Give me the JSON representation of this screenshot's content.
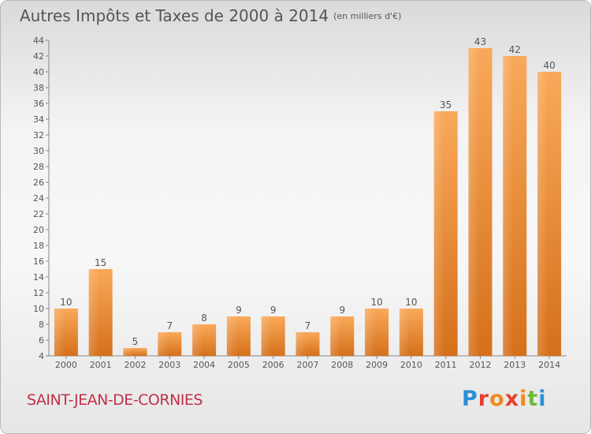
{
  "title": "Autres Impôts et Taxes de 2000 à 2014",
  "unit": "(en milliers d'€)",
  "place": "SAINT-JEAN-DE-CORNIES",
  "logo": {
    "p": "P",
    "r": "r",
    "o": "o",
    "x": "x",
    "i": "i",
    "t": "t",
    "i2": "i"
  },
  "colors": {
    "bar_light": "#f7a552",
    "bar_dark": "#d9731c",
    "text": "#555555",
    "place": "#c0314a"
  },
  "chart_data": {
    "type": "bar",
    "title": "Autres Impôts et Taxes de 2000 à 2014",
    "categories": [
      "2000",
      "2001",
      "2002",
      "2003",
      "2004",
      "2005",
      "2006",
      "2007",
      "2008",
      "2009",
      "2010",
      "2011",
      "2012",
      "2013",
      "2014"
    ],
    "values": [
      10,
      15,
      5,
      7,
      8,
      9,
      9,
      7,
      9,
      10,
      10,
      35,
      43,
      42,
      40
    ],
    "ylim": [
      4,
      44
    ],
    "yticks": [
      4,
      6,
      8,
      10,
      12,
      14,
      16,
      18,
      20,
      22,
      24,
      26,
      28,
      30,
      32,
      34,
      36,
      38,
      40,
      42,
      44
    ],
    "grid": false,
    "data_labels": true
  }
}
